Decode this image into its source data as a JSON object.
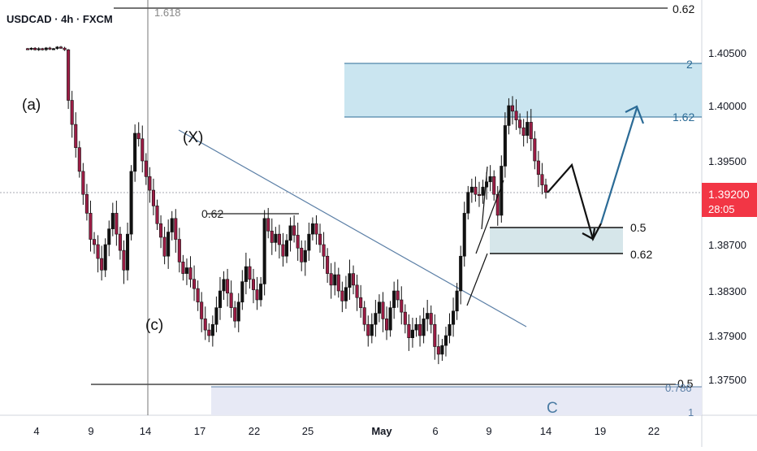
{
  "header": {
    "symbol": "USDCAD · 4h · FXCM"
  },
  "chart_data": {
    "type": "candlestick",
    "symbol": "USDCAD",
    "timeframe": "4h",
    "source": "FXCM",
    "x_axis": {
      "ticks": [
        "4",
        "9",
        "14",
        "17",
        "22",
        "25",
        "May",
        "6",
        "9",
        "14",
        "19",
        "22"
      ]
    },
    "y_axis": {
      "range": [
        1.372,
        1.41
      ],
      "ticks": [
        1.405,
        1.4,
        1.395,
        1.387,
        1.383,
        1.379,
        1.375
      ]
    },
    "price_labels": [
      "1.40500",
      "1.40000",
      "1.39500",
      "1.38700",
      "1.38300",
      "1.37900",
      "1.37500"
    ],
    "current_price": {
      "value": 1.392,
      "label": "1.39200",
      "countdown": "28:05",
      "color": "#f23645"
    },
    "candles_close": [
      1.4085,
      1.4094,
      1.4079,
      1.409,
      1.408,
      1.4096,
      1.4085,
      1.409,
      1.4105,
      1.4095,
      1.4079,
      1.4005,
      1.3983,
      1.3962,
      1.394,
      1.3918,
      1.39,
      1.3875,
      1.387,
      1.3858,
      1.3848,
      1.387,
      1.3885,
      1.39,
      1.388,
      1.3865,
      1.3848,
      1.388,
      1.394,
      1.3975,
      1.397,
      1.395,
      1.3935,
      1.3922,
      1.3907,
      1.389,
      1.3877,
      1.386,
      1.3882,
      1.3895,
      1.3875,
      1.3855,
      1.3845,
      1.385,
      1.384,
      1.3832,
      1.382,
      1.3805,
      1.3795,
      1.379,
      1.38,
      1.3815,
      1.383,
      1.384,
      1.3828,
      1.3815,
      1.3803,
      1.382,
      1.3838,
      1.3851,
      1.384,
      1.3831,
      1.3822,
      1.3836,
      1.3895,
      1.3883,
      1.3872,
      1.388,
      1.387,
      1.386,
      1.3874,
      1.3888,
      1.3879,
      1.3867,
      1.3855,
      1.3865,
      1.388,
      1.389,
      1.388,
      1.387,
      1.386,
      1.3845,
      1.3835,
      1.3844,
      1.383,
      1.3821,
      1.3833,
      1.3845,
      1.3835,
      1.3824,
      1.3815,
      1.38,
      1.379,
      1.38,
      1.381,
      1.382,
      1.3805,
      1.3795,
      1.3815,
      1.383,
      1.3822,
      1.3811,
      1.38,
      1.3788,
      1.3795,
      1.38,
      1.379,
      1.3805,
      1.381,
      1.38,
      1.378,
      1.3773,
      1.3781,
      1.379,
      1.38,
      1.3812,
      1.383,
      1.386,
      1.39,
      1.392,
      1.3925,
      1.3918,
      1.3917,
      1.3925,
      1.393,
      1.3935,
      1.3918,
      1.3898,
      1.3945,
      1.3982,
      1.4,
      1.3995,
      1.3987,
      1.398,
      1.3973,
      1.3985,
      1.397,
      1.395,
      1.3937,
      1.3927,
      1.392
    ],
    "annotations": [
      {
        "label": "(a)"
      },
      {
        "label": "(c)"
      },
      {
        "label": "(X)"
      },
      {
        "label": "0.62"
      },
      {
        "label": "C"
      }
    ],
    "fib_levels": [
      {
        "label": "1.618"
      },
      {
        "label": "0.62"
      },
      {
        "label": "2"
      },
      {
        "label": "1.62"
      },
      {
        "label": "0.5"
      },
      {
        "label": "0.62"
      },
      {
        "label": "0.5"
      },
      {
        "label": "0.786"
      },
      {
        "label": "1"
      }
    ],
    "colors": {
      "up": "#089981",
      "down": "#f23645",
      "candle": "#9c1d45",
      "zone": "#b8dceb",
      "zone_lower": "#e7e9f5",
      "target_zone": "#d6e6ea",
      "projection_blue": "#2b6b96",
      "trendline": "#5b7fa6"
    }
  }
}
